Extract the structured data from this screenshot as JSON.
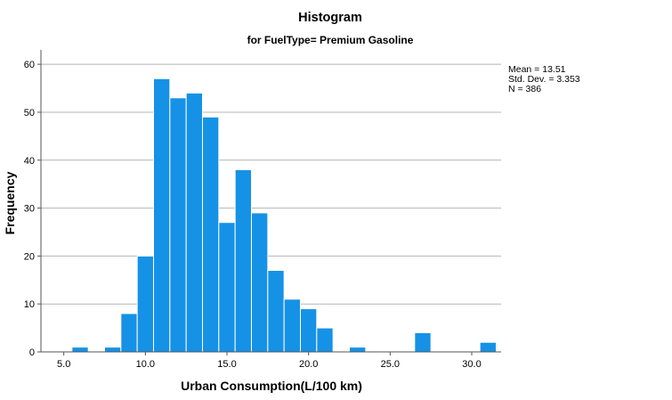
{
  "chart_data": {
    "type": "bar",
    "title": "Histogram",
    "subtitle": "for FuelType= Premium Gasoline",
    "xlabel": "Urban Consumption(L/100 km)",
    "ylabel": "Frequency",
    "bin_width": 1,
    "bins": [
      {
        "start": 5.5,
        "end": 6.5,
        "count": 1
      },
      {
        "start": 7.5,
        "end": 8.5,
        "count": 1
      },
      {
        "start": 8.5,
        "end": 9.5,
        "count": 8
      },
      {
        "start": 9.5,
        "end": 10.5,
        "count": 20
      },
      {
        "start": 10.5,
        "end": 11.5,
        "count": 57
      },
      {
        "start": 11.5,
        "end": 12.5,
        "count": 53
      },
      {
        "start": 12.5,
        "end": 13.5,
        "count": 54
      },
      {
        "start": 13.5,
        "end": 14.5,
        "count": 49
      },
      {
        "start": 14.5,
        "end": 15.5,
        "count": 27
      },
      {
        "start": 15.5,
        "end": 16.5,
        "count": 38
      },
      {
        "start": 16.5,
        "end": 17.5,
        "count": 29
      },
      {
        "start": 17.5,
        "end": 18.5,
        "count": 17
      },
      {
        "start": 18.5,
        "end": 19.5,
        "count": 11
      },
      {
        "start": 19.5,
        "end": 20.5,
        "count": 9
      },
      {
        "start": 20.5,
        "end": 21.5,
        "count": 5
      },
      {
        "start": 22.5,
        "end": 23.5,
        "count": 1
      },
      {
        "start": 26.5,
        "end": 27.5,
        "count": 4
      },
      {
        "start": 30.5,
        "end": 31.5,
        "count": 2
      }
    ],
    "xticks": [
      5.0,
      10.0,
      15.0,
      20.0,
      25.0,
      30.0
    ],
    "xtick_labels": [
      "5.0",
      "10.0",
      "15.0",
      "20.0",
      "25.0",
      "30.0"
    ],
    "yticks": [
      0,
      10,
      20,
      30,
      40,
      50,
      60
    ],
    "ytick_labels": [
      "0",
      "10",
      "20",
      "30",
      "40",
      "50",
      "60"
    ],
    "xlim": [
      3.6,
      31.8
    ],
    "ylim": [
      0,
      63
    ],
    "grid": true,
    "bar_color": "#1592e6",
    "bar_edge_color": "#ffffff",
    "stats": [
      "Mean = 13.51",
      "Std. Dev. = 3.353",
      "N = 386"
    ]
  }
}
